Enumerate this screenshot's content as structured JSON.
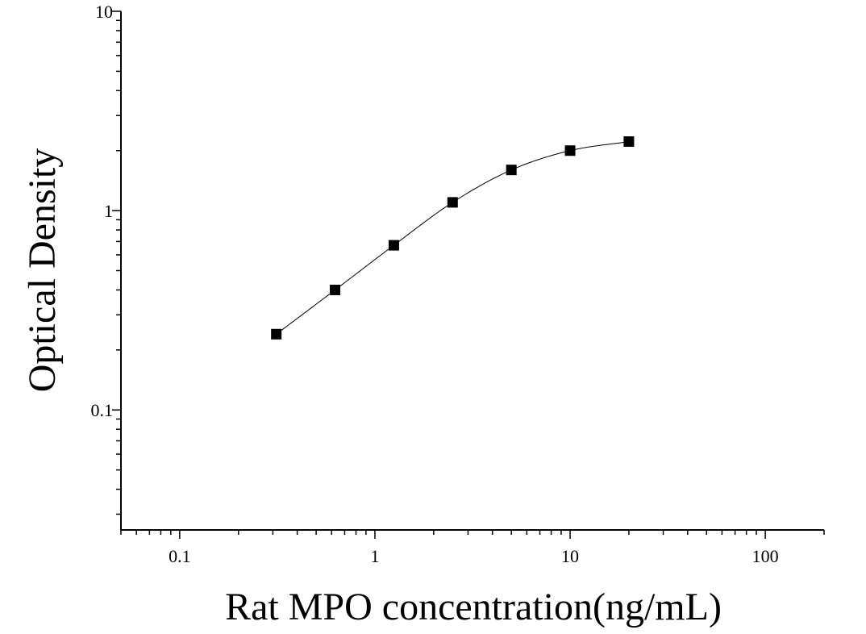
{
  "chart_data": {
    "type": "scatter",
    "title": "",
    "xlabel": "Rat MPO concentration(ng/mL)",
    "ylabel": "Optical Density",
    "xscale": "log",
    "yscale": "log",
    "xlim": [
      0.05,
      200
    ],
    "ylim": [
      0.025,
      10
    ],
    "grid": false,
    "legend": "none",
    "x_tick_labels": [
      "0.1",
      "1",
      "10",
      "100"
    ],
    "y_tick_labels": [
      "0.1",
      "1",
      "10"
    ],
    "series": [
      {
        "marker": "square",
        "color": "#000000",
        "x": [
          0.3125,
          0.625,
          1.25,
          2.5,
          5,
          10,
          20
        ],
        "y": [
          0.24,
          0.4,
          0.67,
          1.1,
          1.6,
          2.0,
          2.22
        ]
      }
    ],
    "fit_curve": true
  }
}
